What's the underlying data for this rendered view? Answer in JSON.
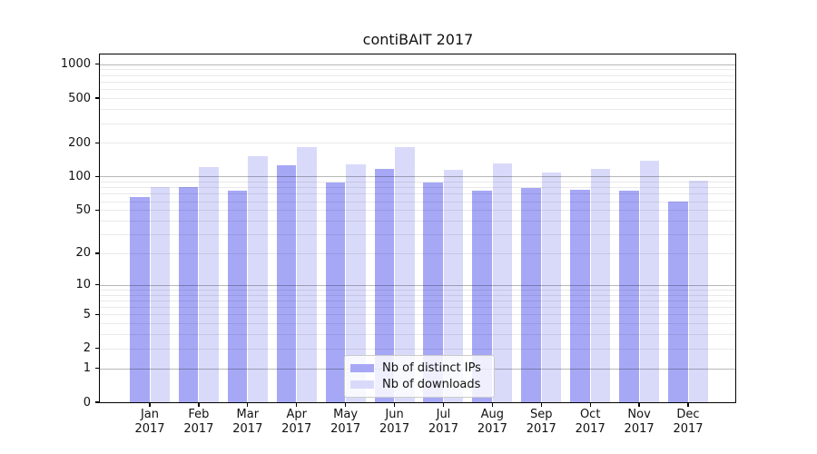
{
  "chart_data": {
    "type": "bar",
    "title": "contiBAIT 2017",
    "categories": [
      "Jan",
      "Feb",
      "Mar",
      "Apr",
      "May",
      "Jun",
      "Jul",
      "Aug",
      "Sep",
      "Oct",
      "Nov",
      "Dec"
    ],
    "year": "2017",
    "series": [
      {
        "name": "Nb of distinct IPs",
        "color": "#a6a8f6",
        "values": [
          66,
          81,
          75,
          127,
          88,
          118,
          88,
          74,
          79,
          76,
          75,
          60
        ]
      },
      {
        "name": "Nb of downloads",
        "color": "#d9dafa",
        "values": [
          80,
          122,
          152,
          185,
          128,
          182,
          115,
          132,
          108,
          116,
          139,
          91
        ]
      }
    ],
    "yscale": "log1p",
    "yticks": [
      0,
      1,
      2,
      5,
      10,
      20,
      50,
      100,
      200,
      500,
      1000
    ],
    "ylim": [
      0,
      1270
    ],
    "xlabel": "",
    "ylabel": "",
    "grid": {
      "minor": "2-9 per decade, faint",
      "major": "1,10,100,1000, gray, drawn over bars"
    },
    "legend_position": "bottom-center"
  }
}
